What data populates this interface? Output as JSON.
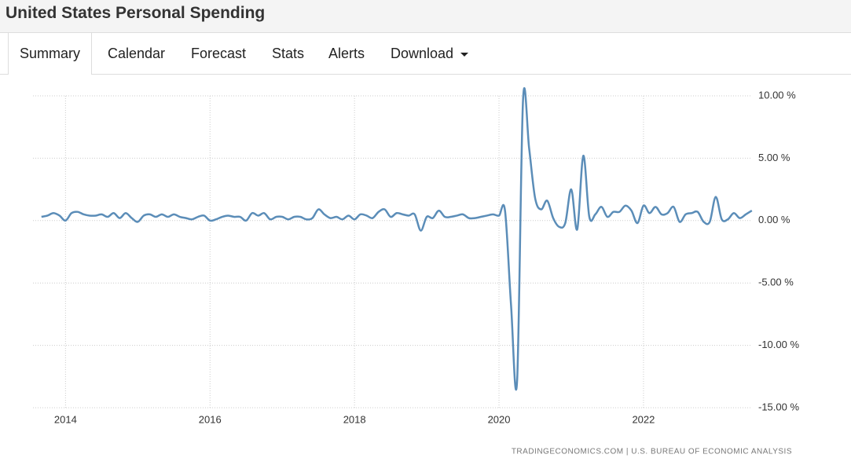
{
  "header": {
    "title": "United States Personal Spending"
  },
  "tabs": [
    "Summary",
    "Calendar",
    "Forecast",
    "Stats",
    "Alerts",
    "Download"
  ],
  "chart_data": {
    "type": "line",
    "source": "TRADINGECONOMICS.COM | U.S. BUREAU OF ECONOMIC ANALYSIS",
    "x": [
      2013.667,
      2013.75,
      2013.833,
      2013.917,
      2014,
      2014.083,
      2014.167,
      2014.25,
      2014.333,
      2014.417,
      2014.5,
      2014.583,
      2014.667,
      2014.75,
      2014.833,
      2014.917,
      2015,
      2015.083,
      2015.167,
      2015.25,
      2015.333,
      2015.417,
      2015.5,
      2015.583,
      2015.667,
      2015.75,
      2015.833,
      2015.917,
      2016,
      2016.083,
      2016.167,
      2016.25,
      2016.333,
      2016.417,
      2016.5,
      2016.583,
      2016.667,
      2016.75,
      2016.833,
      2016.917,
      2017,
      2017.083,
      2017.167,
      2017.25,
      2017.333,
      2017.417,
      2017.5,
      2017.583,
      2017.667,
      2017.75,
      2017.833,
      2017.917,
      2018,
      2018.083,
      2018.167,
      2018.25,
      2018.333,
      2018.417,
      2018.5,
      2018.583,
      2018.667,
      2018.75,
      2018.833,
      2018.917,
      2019,
      2019.083,
      2019.167,
      2019.25,
      2019.333,
      2019.417,
      2019.5,
      2019.583,
      2019.667,
      2019.75,
      2019.833,
      2019.917,
      2020,
      2020.083,
      2020.167,
      2020.25,
      2020.333,
      2020.417,
      2020.5,
      2020.583,
      2020.667,
      2020.75,
      2020.833,
      2020.917,
      2021,
      2021.083,
      2021.167,
      2021.25,
      2021.333,
      2021.417,
      2021.5,
      2021.583,
      2021.667,
      2021.75,
      2021.833,
      2021.917,
      2022,
      2022.083,
      2022.167,
      2022.25,
      2022.333,
      2022.417,
      2022.5,
      2022.583,
      2022.667,
      2022.75,
      2022.833,
      2022.917,
      2023,
      2023.083,
      2023.167,
      2023.25,
      2023.333,
      2023.417,
      2023.5
    ],
    "series": [
      {
        "name": "Personal Spending",
        "color": "#5b8db8",
        "values": [
          0.3,
          0.4,
          0.6,
          0.4,
          0.0,
          0.6,
          0.7,
          0.5,
          0.4,
          0.4,
          0.5,
          0.3,
          0.6,
          0.2,
          0.6,
          0.2,
          -0.1,
          0.4,
          0.5,
          0.3,
          0.5,
          0.3,
          0.5,
          0.3,
          0.2,
          0.1,
          0.3,
          0.4,
          0.0,
          0.1,
          0.3,
          0.4,
          0.3,
          0.3,
          0.0,
          0.6,
          0.4,
          0.6,
          0.1,
          0.3,
          0.3,
          0.1,
          0.3,
          0.3,
          0.1,
          0.2,
          0.9,
          0.5,
          0.2,
          0.3,
          0.1,
          0.4,
          0.1,
          0.5,
          0.4,
          0.2,
          0.7,
          0.9,
          0.3,
          0.6,
          0.5,
          0.4,
          0.5,
          -0.8,
          0.3,
          0.2,
          0.8,
          0.3,
          0.3,
          0.4,
          0.5,
          0.2,
          0.2,
          0.3,
          0.4,
          0.5,
          0.4,
          0.8,
          -6.8,
          -12.9,
          9.7,
          5.8,
          1.8,
          0.9,
          1.6,
          0.2,
          -0.5,
          -0.2,
          2.5,
          -0.7,
          5.2,
          0.3,
          0.5,
          1.1,
          0.3,
          0.7,
          0.7,
          1.2,
          0.8,
          -0.2,
          1.2,
          0.6,
          1.1,
          0.5,
          0.6,
          1.1,
          -0.1,
          0.5,
          0.6,
          0.7,
          -0.1,
          -0.1,
          1.9,
          0.1,
          0.1,
          0.6,
          0.2,
          0.5,
          0.8
        ]
      }
    ],
    "xlim": [
      2013.55,
      2023.48
    ],
    "xticks": [
      2014,
      2016,
      2018,
      2020,
      2022
    ],
    "ylim": [
      -15,
      10
    ],
    "yticks": [
      {
        "value": 10,
        "label": "10.00 %"
      },
      {
        "value": 5,
        "label": "5.00 %"
      },
      {
        "value": 0,
        "label": "0.00 %"
      },
      {
        "value": -5,
        "label": "-5.00 %"
      },
      {
        "value": -10,
        "label": "-10.00 %"
      },
      {
        "value": -15,
        "label": "-15.00 %"
      }
    ],
    "grid": true
  }
}
